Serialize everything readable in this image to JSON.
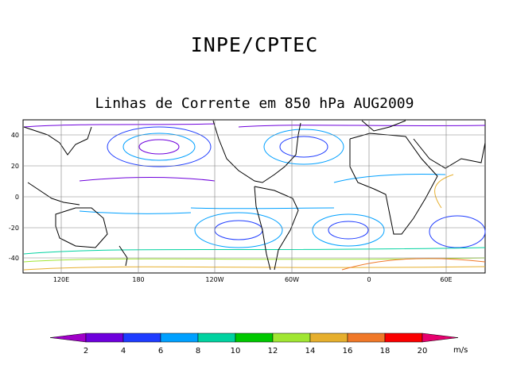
{
  "header": {
    "title": "INPE/CPTEC"
  },
  "map": {
    "subtitle": "Linhas de Corrente em 850 hPa AUG2009",
    "lat_labels": [
      "40",
      "20",
      "0",
      "-20",
      "-40"
    ],
    "lon_labels": [
      "120E",
      "180",
      "120W",
      "60W",
      "0",
      "60E"
    ]
  },
  "colorbar": {
    "unit": "m/s",
    "tick_labels": [
      "2",
      "4",
      "6",
      "8",
      "10",
      "12",
      "14",
      "16",
      "18",
      "20"
    ],
    "colors": [
      "#a000c8",
      "#6e00dc",
      "#1e3cff",
      "#00a0ff",
      "#00d2a0",
      "#00c800",
      "#a0e632",
      "#e6af2d",
      "#f07828",
      "#fa0000",
      "#e6006e"
    ]
  },
  "colors": {
    "coast": "#000000",
    "grid": "#808080"
  }
}
